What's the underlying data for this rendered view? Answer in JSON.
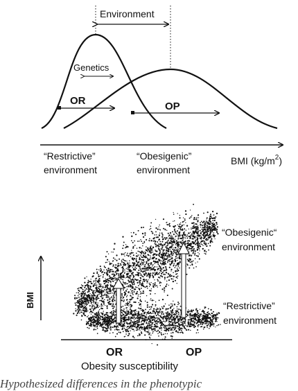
{
  "top_panel": {
    "environment_label": "Environment",
    "genetics_label": "Genetics",
    "or_label": "OR",
    "op_label": "OP",
    "x_axis_label": "BMI (kg/m",
    "x_axis_label_sup": "2",
    "x_axis_label_close": ")",
    "restrictive_line1": "“Restrictive”",
    "restrictive_line2": "environment",
    "obesigenic_line1": "“Obesigenic”",
    "obesigenic_line2": "environment"
  },
  "bottom_panel": {
    "y_axis_label": "BMI",
    "x_axis_label": "Obesity susceptibility",
    "or_label": "OR",
    "op_label": "OP",
    "obesigenic_line1": "“Obesigenic“",
    "obesigenic_line2": "environment",
    "restrictive_line1": "“Restrictive”",
    "restrictive_line2": "environment"
  },
  "caption_fragment": "Hypothesized differences in the phenotypic",
  "colors": {
    "ink": "#111111",
    "arrow_fill": "#ffffff"
  }
}
